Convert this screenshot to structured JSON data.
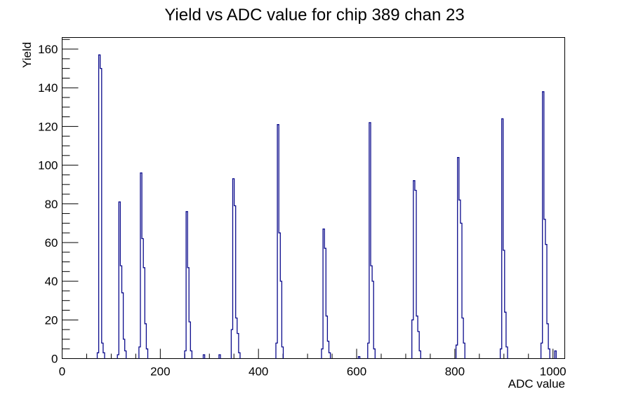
{
  "title": "Yield vs ADC value for chip 389 chan 23",
  "chart_data": {
    "type": "bar",
    "title": "Yield vs ADC value for chip 389 chan 23",
    "xlabel": "ADC value",
    "ylabel": "Yield",
    "xlim": [
      0,
      1024
    ],
    "ylim": [
      0,
      166
    ],
    "x_major_ticks": [
      0,
      200,
      400,
      600,
      800,
      1000
    ],
    "x_minor_step": 50,
    "y_major_ticks": [
      0,
      20,
      40,
      60,
      80,
      100,
      120,
      140,
      160
    ],
    "y_minor_step": 5,
    "grid": false,
    "legend": "none",
    "line_color": "#0a0a8c",
    "frame_color": "#000000",
    "bin_width_adc": 3,
    "peaks": [
      {
        "adc": 76,
        "height": 157,
        "profile": [
          [
            -1,
            3
          ],
          [
            0,
            157
          ],
          [
            1,
            150
          ],
          [
            2,
            8
          ],
          [
            3,
            3
          ]
        ]
      },
      {
        "adc": 117,
        "height": 81,
        "profile": [
          [
            -1,
            2
          ],
          [
            0,
            81
          ],
          [
            1,
            48
          ],
          [
            2,
            34
          ],
          [
            3,
            10
          ],
          [
            4,
            4
          ]
        ]
      },
      {
        "adc": 161,
        "height": 96,
        "profile": [
          [
            -1,
            6
          ],
          [
            0,
            96
          ],
          [
            1,
            62
          ],
          [
            2,
            47
          ],
          [
            3,
            18
          ],
          [
            4,
            5
          ]
        ]
      },
      {
        "adc": 254,
        "height": 76,
        "profile": [
          [
            -1,
            4
          ],
          [
            0,
            76
          ],
          [
            1,
            47
          ],
          [
            2,
            19
          ],
          [
            3,
            4
          ]
        ]
      },
      {
        "adc": 349,
        "height": 93,
        "profile": [
          [
            -1,
            15
          ],
          [
            0,
            93
          ],
          [
            1,
            79
          ],
          [
            2,
            21
          ],
          [
            3,
            13
          ],
          [
            4,
            3
          ]
        ]
      },
      {
        "adc": 440,
        "height": 121,
        "profile": [
          [
            -1,
            8
          ],
          [
            0,
            121
          ],
          [
            1,
            65
          ],
          [
            2,
            40
          ],
          [
            3,
            6
          ]
        ]
      },
      {
        "adc": 533,
        "height": 67,
        "profile": [
          [
            -1,
            5
          ],
          [
            0,
            67
          ],
          [
            1,
            57
          ],
          [
            2,
            22
          ],
          [
            3,
            9
          ],
          [
            4,
            3
          ]
        ]
      },
      {
        "adc": 627,
        "height": 122,
        "profile": [
          [
            -1,
            8
          ],
          [
            0,
            122
          ],
          [
            1,
            48
          ],
          [
            2,
            40
          ],
          [
            3,
            5
          ]
        ]
      },
      {
        "adc": 717,
        "height": 92,
        "profile": [
          [
            -1,
            20
          ],
          [
            0,
            92
          ],
          [
            1,
            87
          ],
          [
            2,
            22
          ],
          [
            3,
            14
          ],
          [
            4,
            4
          ]
        ]
      },
      {
        "adc": 807,
        "height": 104,
        "profile": [
          [
            -1,
            7
          ],
          [
            0,
            104
          ],
          [
            1,
            82
          ],
          [
            2,
            70
          ],
          [
            3,
            21
          ],
          [
            4,
            8
          ]
        ]
      },
      {
        "adc": 897,
        "height": 124,
        "profile": [
          [
            -1,
            5
          ],
          [
            0,
            124
          ],
          [
            1,
            56
          ],
          [
            2,
            24
          ],
          [
            3,
            6
          ]
        ]
      },
      {
        "adc": 980,
        "height": 138,
        "profile": [
          [
            -1,
            8
          ],
          [
            0,
            138
          ],
          [
            1,
            72
          ],
          [
            2,
            59
          ],
          [
            3,
            18
          ],
          [
            4,
            5
          ]
        ]
      }
    ],
    "small_bins": [
      [
        289,
        2
      ],
      [
        321,
        2
      ],
      [
        605,
        1
      ],
      [
        1005,
        4
      ]
    ]
  }
}
